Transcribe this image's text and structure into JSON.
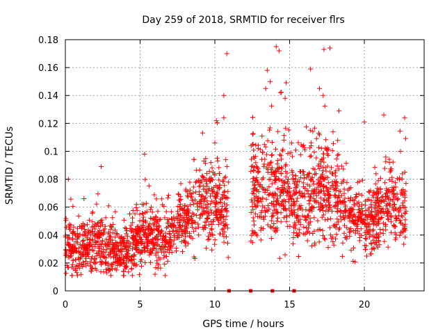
{
  "chart_data": {
    "type": "scatter",
    "title": "Day 259 of 2018, SRMTID for receiver flrs",
    "xlabel": "GPS time / hours",
    "ylabel": "SRMTID / TECUs",
    "xlim": [
      0,
      24
    ],
    "ylim": [
      0,
      0.18
    ],
    "xticks": [
      0,
      5,
      10,
      15,
      20
    ],
    "xtick_labels": [
      "0",
      "5",
      "10",
      "15",
      "20"
    ],
    "yticks": [
      0,
      0.02,
      0.04,
      0.06,
      0.08,
      0.1,
      0.12,
      0.14,
      0.16,
      0.18
    ],
    "ytick_labels": [
      "0",
      "0.02",
      "0.04",
      "0.06",
      "0.08",
      "0.1",
      "0.12",
      "0.14",
      "0.16",
      "0.18"
    ],
    "grid": true,
    "marker": "+",
    "color": "#ff0000",
    "point_count_estimate": 2300,
    "profile": [
      {
        "x": 0.0,
        "y": 0.032,
        "spread": 0.014
      },
      {
        "x": 1.0,
        "y": 0.03,
        "spread": 0.012
      },
      {
        "x": 2.0,
        "y": 0.034,
        "spread": 0.013
      },
      {
        "x": 2.5,
        "y": 0.036,
        "spread": 0.016
      },
      {
        "x": 3.5,
        "y": 0.025,
        "spread": 0.01
      },
      {
        "x": 4.5,
        "y": 0.033,
        "spread": 0.012
      },
      {
        "x": 5.5,
        "y": 0.04,
        "spread": 0.014
      },
      {
        "x": 6.5,
        "y": 0.035,
        "spread": 0.013
      },
      {
        "x": 7.5,
        "y": 0.048,
        "spread": 0.014
      },
      {
        "x": 8.5,
        "y": 0.055,
        "spread": 0.016
      },
      {
        "x": 9.5,
        "y": 0.062,
        "spread": 0.018
      },
      {
        "x": 10.8,
        "y": 0.058,
        "spread": 0.018
      },
      {
        "x": 12.5,
        "y": 0.07,
        "spread": 0.022
      },
      {
        "x": 13.5,
        "y": 0.075,
        "spread": 0.026
      },
      {
        "x": 14.5,
        "y": 0.072,
        "spread": 0.024
      },
      {
        "x": 15.5,
        "y": 0.065,
        "spread": 0.022
      },
      {
        "x": 16.5,
        "y": 0.07,
        "spread": 0.022
      },
      {
        "x": 17.5,
        "y": 0.075,
        "spread": 0.025
      },
      {
        "x": 18.5,
        "y": 0.06,
        "spread": 0.018
      },
      {
        "x": 19.5,
        "y": 0.052,
        "spread": 0.015
      },
      {
        "x": 20.5,
        "y": 0.05,
        "spread": 0.016
      },
      {
        "x": 21.5,
        "y": 0.065,
        "spread": 0.018
      },
      {
        "x": 22.7,
        "y": 0.058,
        "spread": 0.018
      }
    ],
    "active_ranges": [
      [
        0.0,
        10.9
      ],
      [
        12.4,
        22.8
      ]
    ],
    "notable_points": [
      {
        "x": 14.1,
        "y": 0.175
      },
      {
        "x": 17.7,
        "y": 0.174
      },
      {
        "x": 17.3,
        "y": 0.173
      },
      {
        "x": 14.3,
        "y": 0.172
      },
      {
        "x": 10.8,
        "y": 0.17
      },
      {
        "x": 13.5,
        "y": 0.158
      },
      {
        "x": 13.7,
        "y": 0.15
      },
      {
        "x": 16.4,
        "y": 0.159
      },
      {
        "x": 17.0,
        "y": 0.145
      },
      {
        "x": 10.6,
        "y": 0.14
      },
      {
        "x": 13.4,
        "y": 0.145
      },
      {
        "x": 14.7,
        "y": 0.138
      },
      {
        "x": 18.3,
        "y": 0.129
      },
      {
        "x": 21.3,
        "y": 0.126
      },
      {
        "x": 22.7,
        "y": 0.124
      },
      {
        "x": 10.6,
        "y": 0.124
      },
      {
        "x": 20.0,
        "y": 0.121
      },
      {
        "x": 0.2,
        "y": 0.08
      },
      {
        "x": 5.3,
        "y": 0.098
      },
      {
        "x": 2.4,
        "y": 0.089
      },
      {
        "x": 10.0,
        "y": 0.106
      }
    ],
    "zero_markers_x": [
      10.95,
      12.4,
      13.85,
      15.3
    ]
  }
}
